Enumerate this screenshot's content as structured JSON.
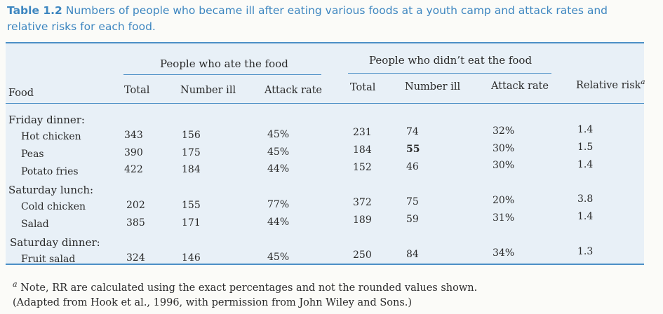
{
  "caption": {
    "number": "Table 1.2",
    "text": " Numbers of people who became ill after eating various foods at a youth camp and attack rates and relative risks for each food."
  },
  "groups": {
    "ate": "People who ate the food",
    "didnt": "People who didn’t eat the food"
  },
  "headers": {
    "food": "Food",
    "total_ate": "Total",
    "ill_ate": "Number ill",
    "rate_ate": "Attack rate",
    "total_not": "Total",
    "ill_not": "Number ill",
    "rate_not": "Attack rate",
    "rr": "Relative risk",
    "rr_mark": "a"
  },
  "sections": [
    {
      "title": "Friday dinner:",
      "rows": [
        {
          "food": "Hot chicken",
          "total_ate": "343",
          "ill_ate": "156",
          "rate_ate": "45%",
          "total_not": "231",
          "ill_not": "74",
          "rate_not": "32%",
          "rr": "1.4"
        },
        {
          "food": "Peas",
          "total_ate": "390",
          "ill_ate": "175",
          "rate_ate": "45%",
          "total_not": "184",
          "ill_not": "55",
          "rate_not": "30%",
          "rr": "1.5"
        },
        {
          "food": "Potato fries",
          "total_ate": "422",
          "ill_ate": "184",
          "rate_ate": "44%",
          "total_not": "152",
          "ill_not": "46",
          "rate_not": "30%",
          "rr": "1.4"
        }
      ]
    },
    {
      "title": "Saturday lunch:",
      "rows": [
        {
          "food": "Cold chicken",
          "total_ate": "202",
          "ill_ate": "155",
          "rate_ate": "77%",
          "total_not": "372",
          "ill_not": "75",
          "rate_not": "20%",
          "rr": "3.8"
        },
        {
          "food": "Salad",
          "total_ate": "385",
          "ill_ate": "171",
          "rate_ate": "44%",
          "total_not": "189",
          "ill_not": "59",
          "rate_not": "31%",
          "rr": "1.4"
        }
      ]
    },
    {
      "title": "Saturday dinner:",
      "rows": [
        {
          "food": "Fruit salad",
          "total_ate": "324",
          "ill_ate": "146",
          "rate_ate": "45%",
          "total_not": "250",
          "ill_not": "84",
          "rate_not": "34%",
          "rr": "1.3"
        }
      ]
    }
  ],
  "notes": {
    "note_mark": "a",
    "note_text": " Note, RR are calculated using the exact percentages and not the rounded values shown.",
    "source": "(Adapted from Hook et al., 1996, with permission from John Wiley and Sons.)"
  },
  "colors": {
    "accent": "#3d86c0",
    "band": "#e8f0f7",
    "rule": "#4b8fc6"
  }
}
